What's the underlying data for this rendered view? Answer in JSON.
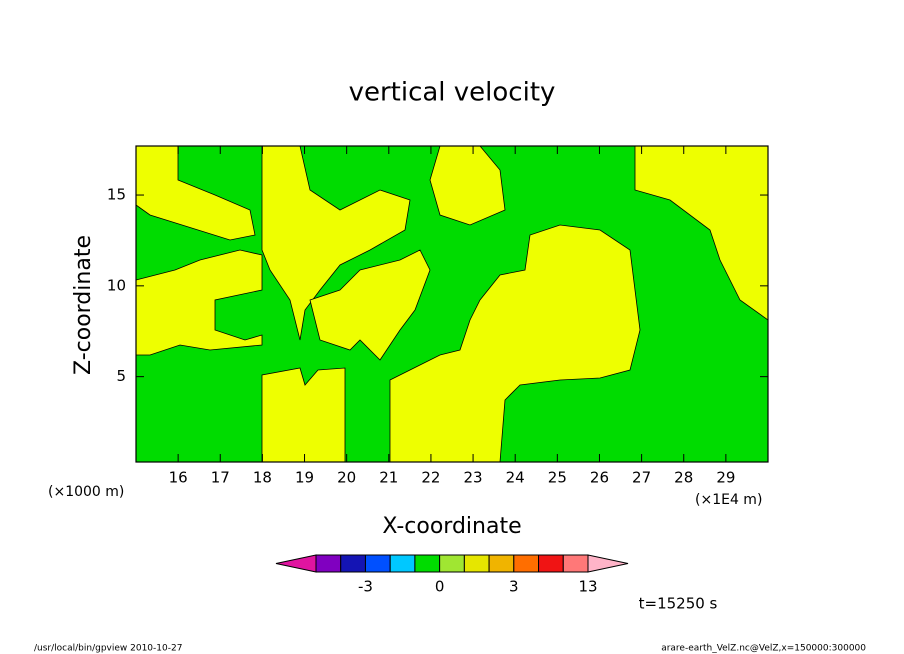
{
  "chart_data": {
    "type": "contour",
    "title": "vertical velocity",
    "xlabel": "X-coordinate",
    "ylabel": "Z-coordinate",
    "x_unit_left": "(×1000 m)",
    "x_unit_right": "(×1E4 m)",
    "xlim": [
      15,
      30
    ],
    "xticks": [
      16,
      17,
      18,
      19,
      20,
      21,
      22,
      23,
      24,
      25,
      26,
      27,
      28,
      29
    ],
    "ylim": [
      0.3,
      17.7
    ],
    "yticks": [
      5,
      10,
      15
    ],
    "colorbar": {
      "levels": [
        -5,
        -4,
        -3,
        -2,
        -1,
        0,
        1,
        2,
        3,
        6,
        10,
        13
      ],
      "colors": [
        "#8000c0",
        "#1414b4",
        "#0050ff",
        "#00c8ff",
        "#00dc00",
        "#a0e632",
        "#e6e600",
        "#f0b400",
        "#ff6e00",
        "#f01414",
        "#ff7878"
      ],
      "under_color": "#e014a0",
      "over_color": "#ffb4c8",
      "ticks": [
        -3,
        0,
        3,
        13
      ]
    },
    "time_label": "t=15250 s",
    "footer_left": "/usr/local/bin/gpview   2010-10-27",
    "footer_right": "arare-earth_VelZ.nc@VelZ,x=150000:300000"
  }
}
